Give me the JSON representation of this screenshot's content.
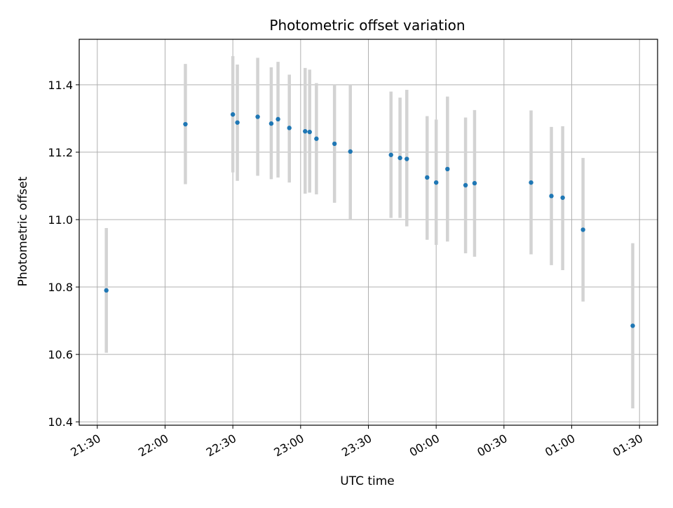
{
  "chart_data": {
    "type": "scatter",
    "title": "Photometric offset variation",
    "xlabel": "UTC time",
    "ylabel": "Photometric offset",
    "grid": true,
    "legend": "none",
    "x_ticks": [
      "21:30",
      "22:00",
      "22:30",
      "23:00",
      "23:30",
      "00:00",
      "00:30",
      "01:00",
      "01:30"
    ],
    "y_ticks": [
      "10.4",
      "10.6",
      "10.8",
      "11.0",
      "11.2",
      "11.4"
    ],
    "xlim": [
      "21:22",
      "01:38"
    ],
    "ylim": [
      10.39,
      11.535
    ],
    "colors": {
      "point": "#1f77b4",
      "errorbar": "#d3d3d3",
      "grid": "#b0b0b0",
      "axis": "#000000"
    },
    "series": [
      {
        "x": [
          "21:34",
          "22:09",
          "22:30",
          "22:32",
          "22:41",
          "22:47",
          "22:50",
          "22:55",
          "23:02",
          "23:04",
          "23:07",
          "23:15",
          "23:22",
          "23:40",
          "23:44",
          "23:47",
          "23:56",
          "00:00",
          "00:05",
          "00:13",
          "00:17",
          "00:42",
          "00:51",
          "00:56",
          "01:05",
          "01:27"
        ],
        "y": [
          10.79,
          11.283,
          11.312,
          11.288,
          11.305,
          11.285,
          11.298,
          11.272,
          11.262,
          11.26,
          11.24,
          11.225,
          11.202,
          11.192,
          11.183,
          11.18,
          11.125,
          11.11,
          11.15,
          11.102,
          11.108,
          11.11,
          11.07,
          11.065,
          10.97,
          10.685
        ],
        "yerr_low": [
          10.605,
          11.105,
          11.14,
          11.115,
          11.13,
          11.12,
          11.125,
          11.11,
          11.077,
          11.08,
          11.075,
          11.05,
          11.0,
          11.005,
          11.005,
          10.98,
          10.94,
          10.925,
          10.935,
          10.9,
          10.89,
          10.897,
          10.865,
          10.85,
          10.757,
          10.44
        ],
        "yerr_high": [
          10.975,
          11.462,
          11.485,
          11.46,
          11.48,
          11.452,
          11.468,
          11.43,
          11.45,
          11.445,
          11.405,
          11.4,
          11.4,
          11.38,
          11.362,
          11.385,
          11.307,
          11.297,
          11.365,
          11.303,
          11.325,
          11.324,
          11.275,
          11.277,
          11.183,
          10.93
        ]
      }
    ]
  }
}
